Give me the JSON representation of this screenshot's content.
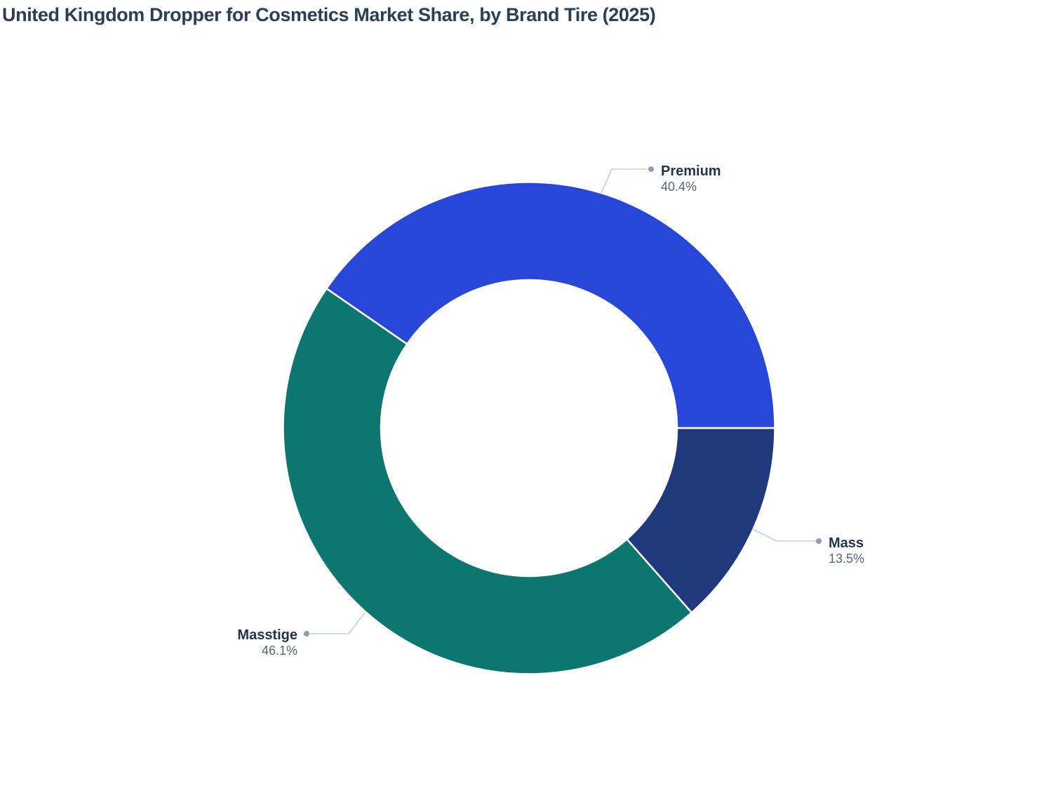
{
  "page": {
    "background": "#ffffff"
  },
  "chart_data": {
    "type": "pie",
    "subtype": "donut",
    "title": "United Kingdom Dropper for Cosmetics Market Share, by Brand Tire (2025)",
    "title_color": "#2a3f55",
    "hole": 0.6,
    "rotation_deg": -55.44,
    "direction": "clockwise",
    "legend_position": "none",
    "grid": false,
    "slices": [
      {
        "label": "Premium",
        "value": 40.4,
        "display": "40.4%",
        "color": "#2846d7"
      },
      {
        "label": "Mass",
        "value": 13.5,
        "display": "13.5%",
        "color": "#20397d"
      },
      {
        "label": "Masstige",
        "value": 46.1,
        "display": "46.1%",
        "color": "#0d766e"
      }
    ],
    "label_color": "#1f3448",
    "pct_color": "#54657a",
    "leader_line_color": "#c6cfdb",
    "leader_dot_color": "#8e9eb3",
    "slice_border_color": "#ffffff"
  }
}
